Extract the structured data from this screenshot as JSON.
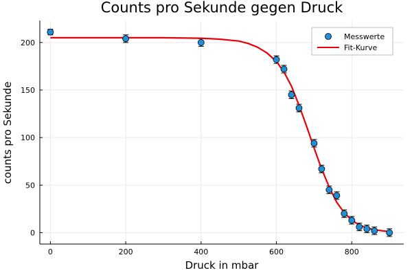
{
  "chart_data": {
    "type": "scatter",
    "title": "Counts pro Sekunde gegen Druck",
    "xlabel": "Druck in mbar",
    "ylabel": "counts pro Sekunde",
    "xlim": [
      -28,
      938
    ],
    "ylim": [
      -12,
      223
    ],
    "xticks": [
      0,
      200,
      400,
      600,
      800
    ],
    "yticks": [
      0,
      50,
      100,
      150,
      200
    ],
    "grid": true,
    "legend": "top-right",
    "series": [
      {
        "name": "Messwerte",
        "kind": "points",
        "color": "#1f8fd8",
        "x": [
          0,
          200,
          400,
          600,
          620,
          640,
          660,
          700,
          720,
          740,
          760,
          780,
          800,
          820,
          840,
          860,
          900
        ],
        "y": [
          211,
          204,
          200,
          182,
          172,
          145,
          131,
          94,
          67,
          45,
          39,
          20,
          13,
          6,
          4,
          2,
          0
        ],
        "yerr": [
          3,
          4,
          4,
          4,
          4,
          4,
          4,
          4,
          4,
          4,
          4,
          4,
          4,
          4,
          4,
          4,
          4
        ],
        "xerr": [
          5,
          5,
          5,
          5,
          5,
          5,
          5,
          5,
          5,
          5,
          5,
          5,
          5,
          5,
          5,
          5,
          5
        ]
      },
      {
        "name": "Fit-Kurve",
        "kind": "line",
        "color": "#e8000b",
        "x": [
          0,
          100,
          200,
          300,
          400,
          450,
          500,
          525,
          550,
          575,
          600,
          620,
          640,
          660,
          680,
          700,
          720,
          740,
          760,
          780,
          800,
          820,
          840,
          860,
          880,
          900
        ],
        "y": [
          205,
          205,
          205,
          205,
          204.5,
          203.5,
          201.5,
          199,
          195,
          189,
          180,
          169,
          154,
          134,
          112,
          89,
          67,
          48,
          32,
          21,
          13,
          8,
          5,
          3,
          2,
          1
        ]
      }
    ]
  }
}
